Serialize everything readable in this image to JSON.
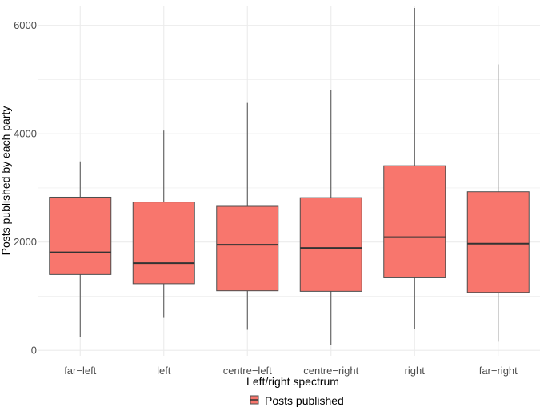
{
  "chart_data": {
    "type": "boxplot",
    "xlabel": "Left/right spectrum",
    "ylabel": "Posts published by each party",
    "ylim": [
      -100,
      6350
    ],
    "yticks": [
      0,
      2000,
      4000,
      6000
    ],
    "grid": true,
    "legend": {
      "position": "bottom",
      "entries": [
        "Posts published"
      ]
    },
    "colors": {
      "fill": "#f8766d",
      "stroke": "#4d4d4d",
      "median": "#333333",
      "grid": "#ebebeb"
    },
    "categories": [
      "far−left",
      "left",
      "centre−left",
      "centre−right",
      "right",
      "far−right"
    ],
    "series": [
      {
        "name": "Posts published",
        "boxes": [
          {
            "min": 240,
            "q1": 1400,
            "median": 1810,
            "q3": 2830,
            "max": 3490
          },
          {
            "min": 600,
            "q1": 1230,
            "median": 1610,
            "q3": 2740,
            "max": 4060
          },
          {
            "min": 380,
            "q1": 1100,
            "median": 1950,
            "q3": 2660,
            "max": 4570
          },
          {
            "min": 100,
            "q1": 1090,
            "median": 1890,
            "q3": 2820,
            "max": 4810
          },
          {
            "min": 390,
            "q1": 1340,
            "median": 2090,
            "q3": 3410,
            "max": 6320
          },
          {
            "min": 160,
            "q1": 1070,
            "median": 1970,
            "q3": 2930,
            "max": 5280
          }
        ]
      }
    ]
  }
}
